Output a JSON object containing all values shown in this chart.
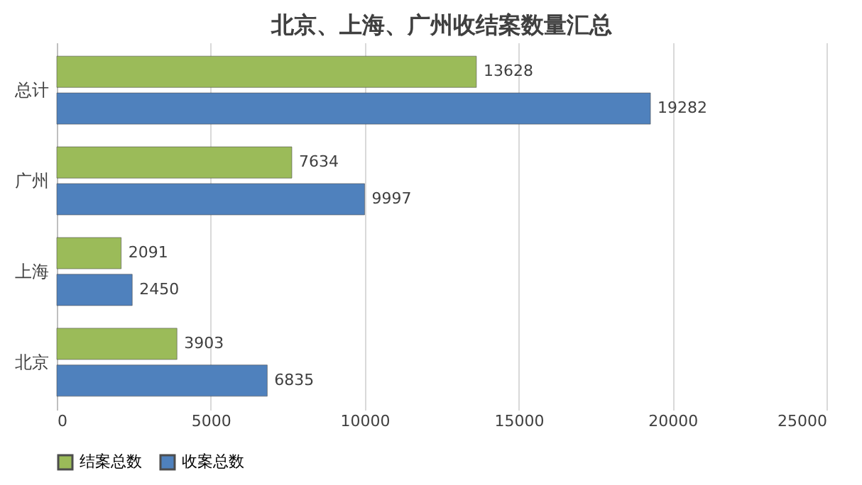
{
  "chart_data": {
    "type": "bar",
    "orientation": "horizontal",
    "title": "北京、上海、广州收结案数量汇总",
    "categories": [
      "总计",
      "广州",
      "上海",
      "北京"
    ],
    "series": [
      {
        "name": "结案总数",
        "color": "#9bbb59",
        "values": [
          13628,
          7634,
          2091,
          3903
        ]
      },
      {
        "name": "收案总数",
        "color": "#4f81bd",
        "values": [
          19282,
          9997,
          2450,
          6835
        ]
      }
    ],
    "xlim": [
      0,
      25000
    ],
    "xticks": [
      0,
      5000,
      10000,
      15000,
      20000,
      25000
    ],
    "grid": "x",
    "legend": "bottom",
    "data_labels": true
  }
}
